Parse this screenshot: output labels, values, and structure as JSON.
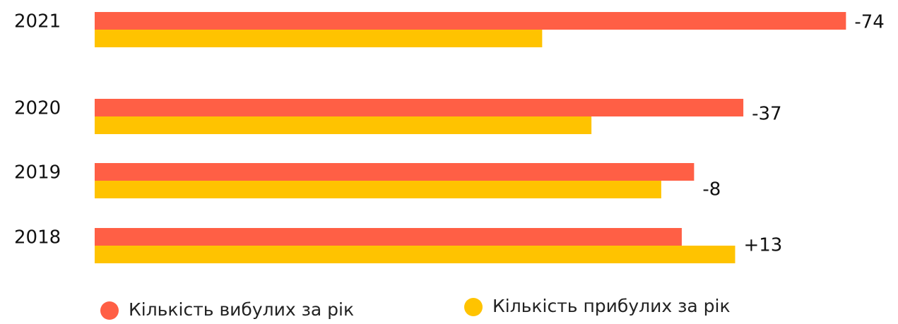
{
  "chart_data": {
    "type": "hbar",
    "categories": [
      "2021",
      "2020",
      "2019",
      "2018"
    ],
    "series": [
      {
        "name": "Кількість вибулих за рік",
        "color": "#ff5f45",
        "values": [
          183,
          158,
          146,
          143
        ]
      },
      {
        "name": "Кількість прибулих за рік",
        "color": "#ffc300",
        "values": [
          109,
          121,
          138,
          156
        ]
      }
    ],
    "annotations": [
      "-74",
      "-37",
      "-8",
      "+13"
    ],
    "xlim": [
      0,
      185
    ]
  }
}
